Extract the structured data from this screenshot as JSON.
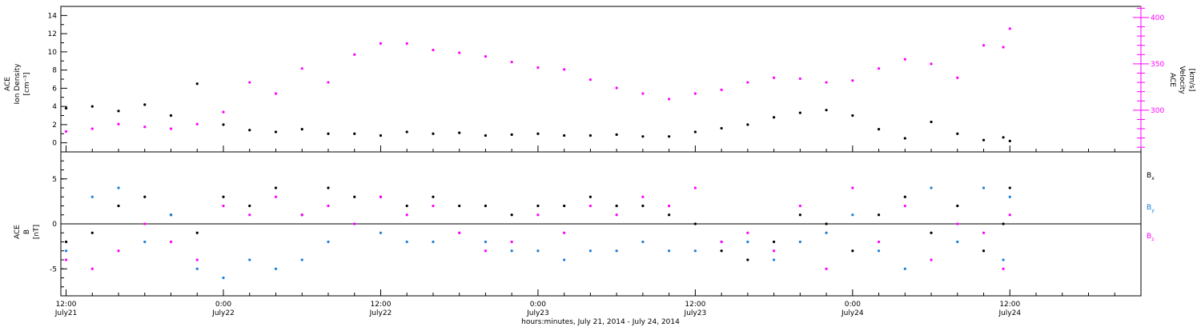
{
  "chart_data": [
    {
      "type": "scatter",
      "title": "",
      "ylabel": {
        "line1": "ACE",
        "line2": "Ion Density",
        "line3": "[cm⁻³]"
      },
      "ylabel_right": {
        "line1": "ACE",
        "line2": "Velocity",
        "line3": "[km/s]"
      },
      "ylim": [
        -1,
        15
      ],
      "yticks": [
        "0",
        "2",
        "4",
        "6",
        "8",
        "10",
        "12",
        "14"
      ],
      "y2lim": [
        255,
        412
      ],
      "y2ticks": [
        "300",
        "350",
        "400"
      ],
      "x_hours_from_july21_1200": [
        0,
        2,
        4,
        6,
        8,
        10,
        12,
        14,
        16,
        18,
        20,
        22,
        24,
        26,
        28,
        30,
        32,
        34,
        36,
        38,
        40,
        42,
        44,
        46,
        48,
        50,
        52,
        54,
        56,
        58,
        60,
        62,
        64,
        66,
        68,
        70,
        72,
        71.5
      ],
      "series": [
        {
          "name": "",
          "color": "#000000",
          "values": [
            3.8,
            4.0,
            3.5,
            4.2,
            3.0,
            6.5,
            2.0,
            1.4,
            1.2,
            1.5,
            1.0,
            1.0,
            0.8,
            1.2,
            1.0,
            1.1,
            0.8,
            0.9,
            1.0,
            0.8,
            0.8,
            0.9,
            0.7,
            0.7,
            1.2,
            1.6,
            2.0,
            2.8,
            3.3,
            3.6,
            3.0,
            1.5,
            0.5,
            2.3,
            1.0,
            0.3,
            0.2,
            0.6
          ]
        },
        {
          "name": "",
          "color": "#ff00ff",
          "values": [
            277,
            280,
            285,
            282,
            280,
            285,
            298,
            330,
            318,
            345,
            330,
            360,
            372,
            372,
            365,
            362,
            358,
            352,
            346,
            344,
            333,
            324,
            318,
            312,
            318,
            322,
            330,
            335,
            334,
            330,
            332,
            345,
            355,
            350,
            335,
            370,
            388,
            368
          ]
        }
      ]
    },
    {
      "type": "scatter",
      "title": "",
      "ylabel": {
        "line1": "ACE",
        "line2": "B",
        "line3": "[nT]"
      },
      "ylim": [
        -8,
        8
      ],
      "yticks": [
        "-5",
        "0",
        "5"
      ],
      "legend": [
        {
          "label": "B",
          "sub": "x",
          "color": "#000000"
        },
        {
          "label": "B",
          "sub": "y",
          "color": "#1a7fd8"
        },
        {
          "label": "B",
          "sub": "z",
          "color": "#ff00ff"
        }
      ],
      "x_hours_from_july21_1200": [
        0,
        2,
        4,
        6,
        8,
        10,
        12,
        14,
        16,
        18,
        20,
        22,
        24,
        26,
        28,
        30,
        32,
        34,
        36,
        38,
        40,
        42,
        44,
        46,
        48,
        50,
        52,
        54,
        56,
        58,
        60,
        62,
        64,
        66,
        68,
        70,
        72,
        71.5
      ],
      "series": [
        {
          "name": "Bx",
          "color": "#000000",
          "values": [
            -2,
            -1,
            2,
            3,
            1,
            -1,
            3,
            2,
            4,
            1,
            4,
            3,
            3,
            2,
            3,
            2,
            2,
            1,
            2,
            2,
            3,
            2,
            2,
            1,
            0,
            -3,
            -4,
            -2,
            1,
            0,
            -3,
            1,
            3,
            -1,
            2,
            -3,
            4,
            0
          ]
        },
        {
          "name": "By",
          "color": "#1a7fd8",
          "values": [
            -3,
            3,
            4,
            -2,
            1,
            -5,
            -6,
            -4,
            -5,
            -4,
            -2,
            0,
            -1,
            -2,
            -2,
            -1,
            -2,
            -3,
            -3,
            -4,
            -3,
            -3,
            -2,
            -3,
            -3,
            -2,
            -2,
            -4,
            -2,
            -1,
            1,
            -3,
            -5,
            4,
            -2,
            4,
            3,
            -4
          ]
        },
        {
          "name": "Bz",
          "color": "#ff00ff",
          "values": [
            -4,
            -5,
            -3,
            0,
            -2,
            -4,
            2,
            1,
            3,
            1,
            2,
            0,
            3,
            1,
            2,
            -1,
            -3,
            -2,
            1,
            -1,
            2,
            1,
            3,
            2,
            4,
            -2,
            -1,
            -3,
            2,
            -5,
            4,
            -2,
            2,
            -4,
            0,
            -1,
            1,
            -5
          ]
        }
      ],
      "zero_line": 0
    }
  ],
  "xaxis": {
    "xlim_hours": [
      -0.4,
      82
    ],
    "ticks": [
      {
        "time": "12:00",
        "date": "July21"
      },
      {
        "time": "0:00",
        "date": "July22"
      },
      {
        "time": "12:00",
        "date": "July22"
      },
      {
        "time": "0:00",
        "date": "July23"
      },
      {
        "time": "12:00",
        "date": "July23"
      },
      {
        "time": "0:00",
        "date": "July24"
      },
      {
        "time": "12:00",
        "date": "July24"
      }
    ],
    "title": "hours:minutes, July 21, 2014 - July 24, 2014"
  }
}
